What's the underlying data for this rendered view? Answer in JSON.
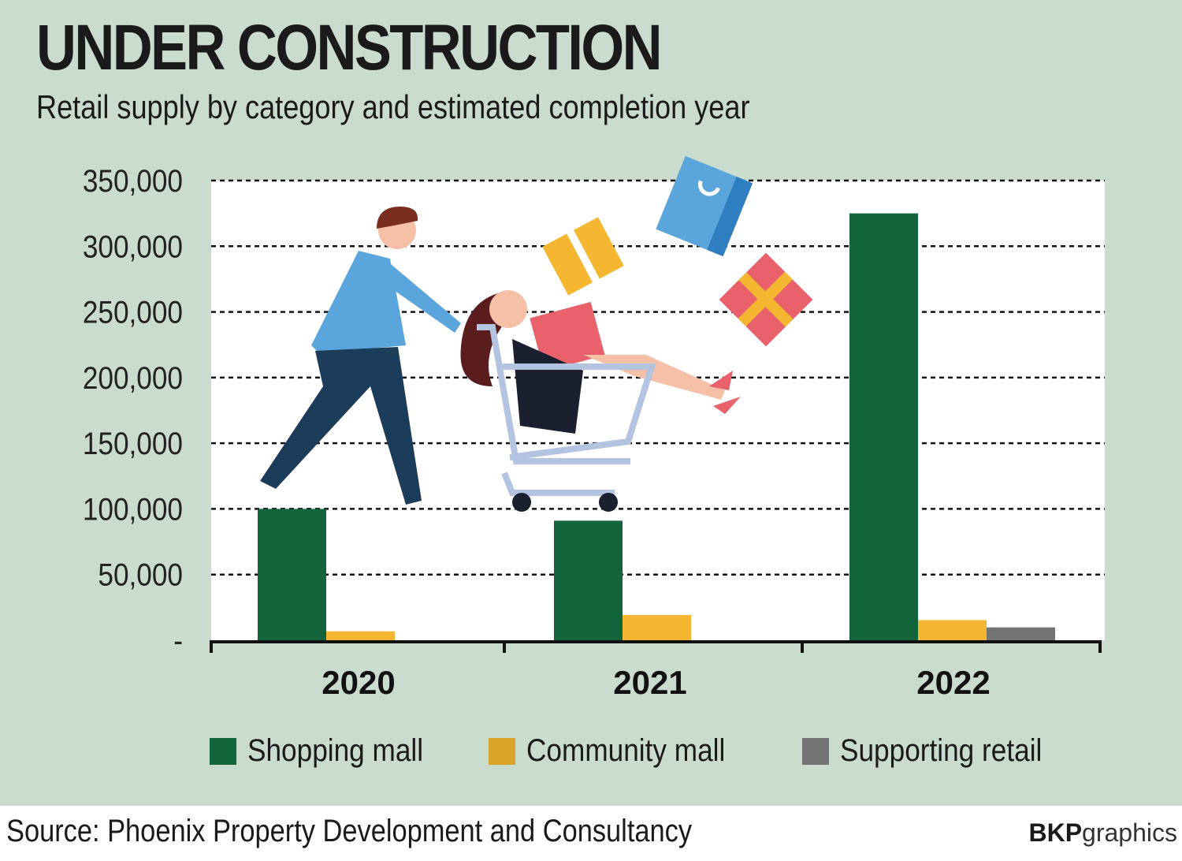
{
  "header": {
    "title": "UNDER CONSTRUCTION",
    "subtitle": "Retail supply by category and estimated completion year"
  },
  "chart_data": {
    "type": "bar",
    "title": "UNDER CONSTRUCTION",
    "subtitle": "Retail supply by category and estimated completion year",
    "categories": [
      "2020",
      "2021",
      "2022"
    ],
    "series": [
      {
        "name": "Shopping mall",
        "color": "#12643a",
        "values": [
          100000,
          91000,
          325000
        ]
      },
      {
        "name": "Community mall",
        "color": "#f5b731",
        "values": [
          6800,
          19200,
          15300
        ]
      },
      {
        "name": "Supporting retail",
        "color": "#737373",
        "values": [
          0,
          0,
          9800
        ]
      }
    ],
    "yticks": [
      "-",
      "50,000",
      "100,000",
      "150,000",
      "200,000",
      "250,000",
      "300,000",
      "350,000"
    ],
    "ytick_values": [
      0,
      50000,
      100000,
      150000,
      200000,
      250000,
      300000,
      350000
    ],
    "ylim": [
      0,
      350000
    ],
    "grid": true,
    "legend_placement": "bottom",
    "xlabel": "",
    "ylabel": ""
  },
  "legend": [
    {
      "label": "Shopping mall",
      "color": "#12643a"
    },
    {
      "label": "Community mall",
      "color": "#d9a42a"
    },
    {
      "label": "Supporting retail",
      "color": "#737373"
    }
  ],
  "footer": {
    "source": "Source: Phoenix Property Development and Consultancy",
    "credit_bold": "BKP",
    "credit_rest": "graphics"
  },
  "illustration": {
    "description_icons": [
      "man-pushing-cart-icon",
      "woman-in-cart-icon",
      "shopping-bag-icon",
      "gift-box-icon"
    ]
  }
}
